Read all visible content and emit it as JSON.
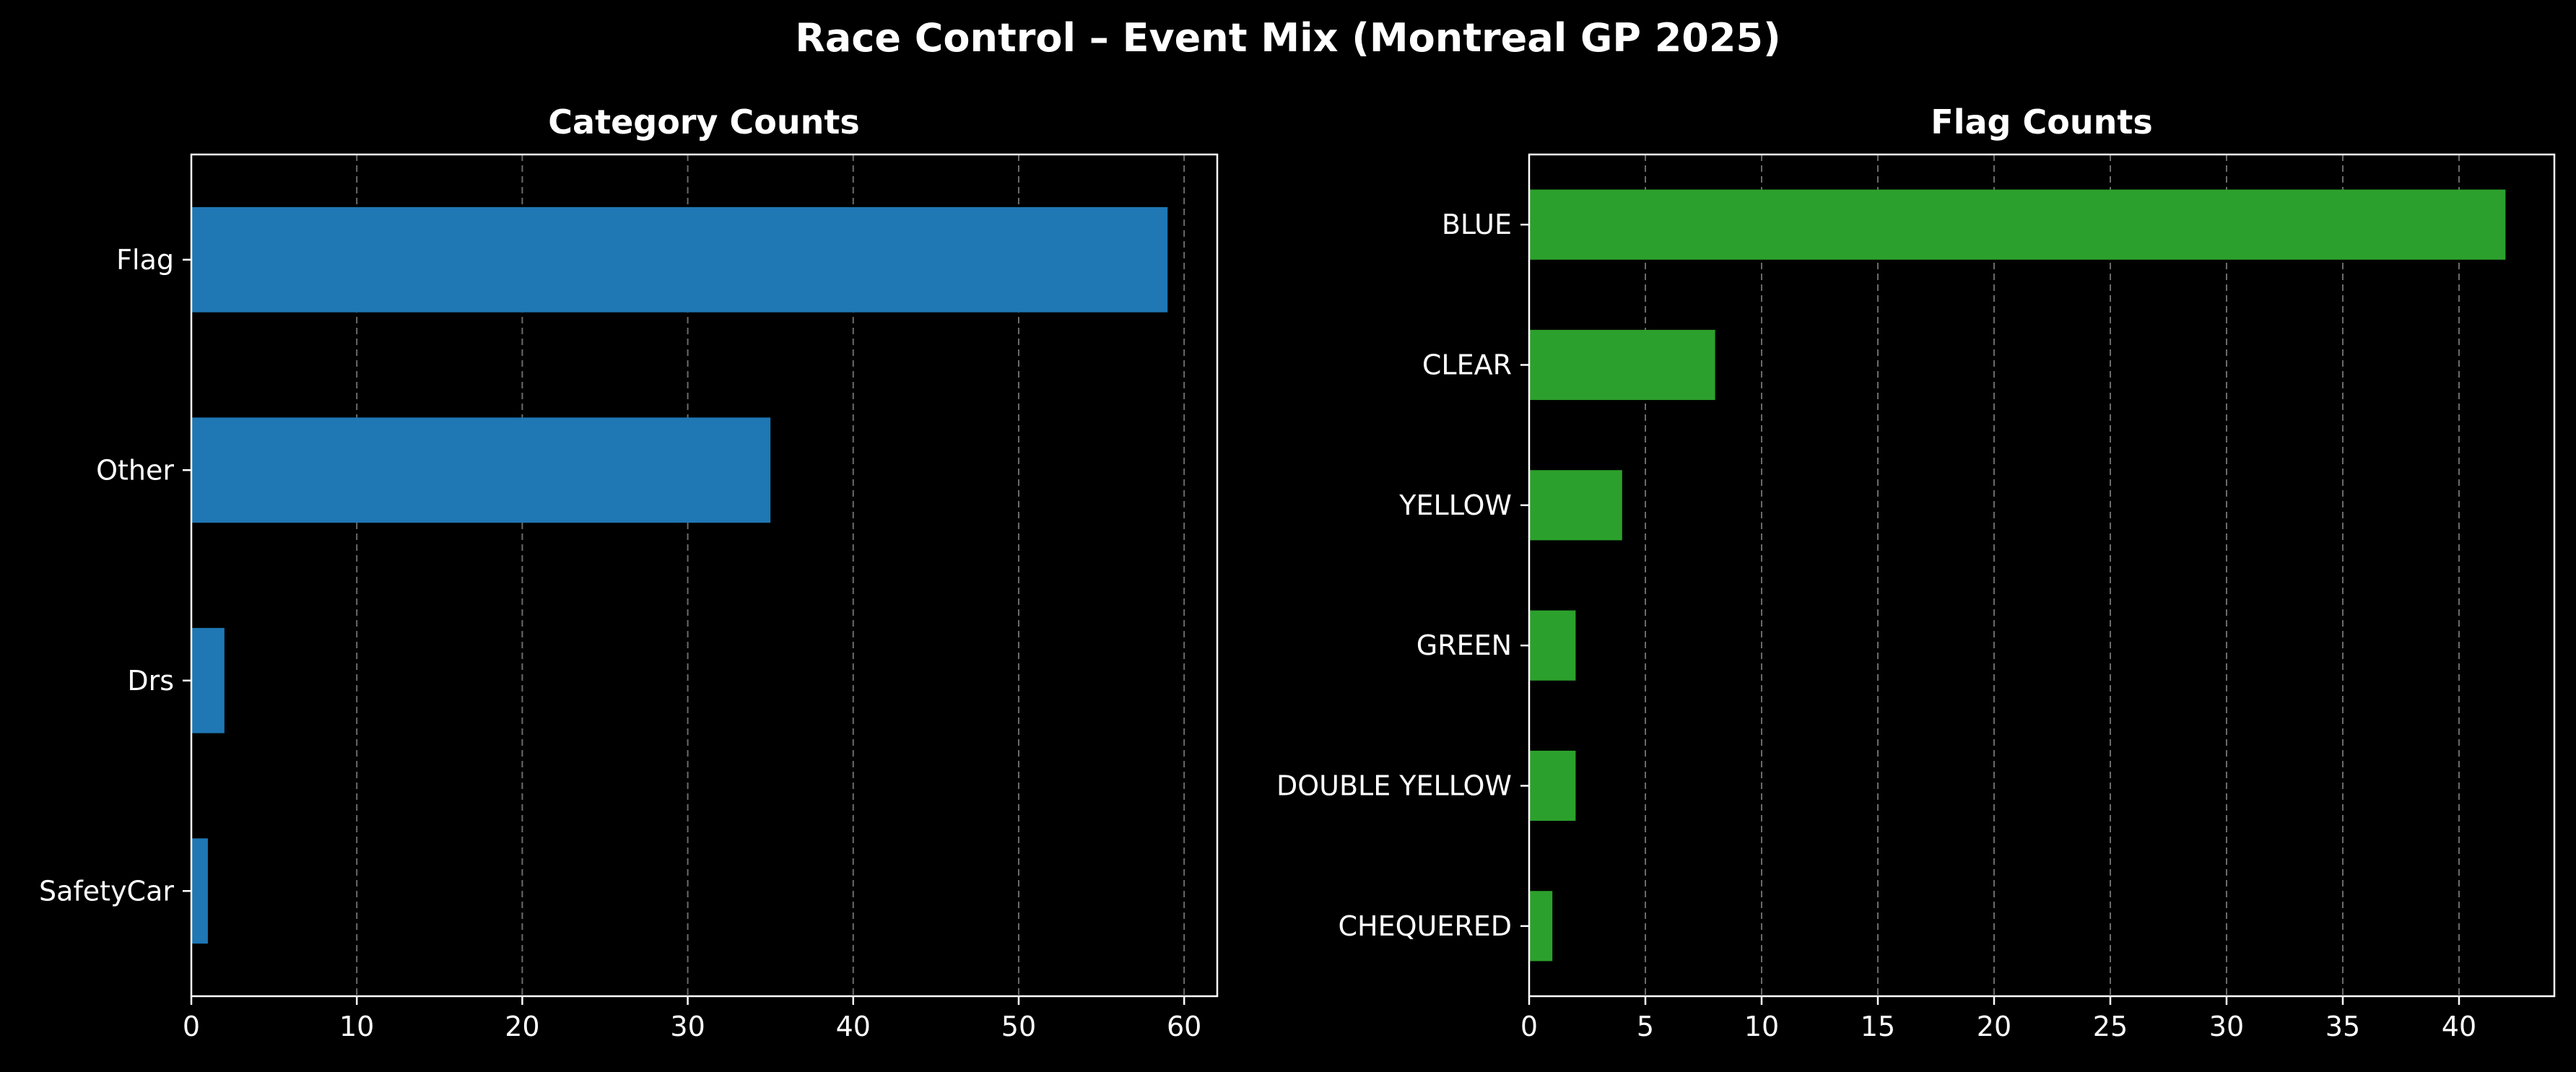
{
  "title": "Race Control – Event Mix (Montreal GP 2025)",
  "chart_data": [
    {
      "type": "bar",
      "orientation": "horizontal",
      "title": "Category Counts",
      "xlabel": "",
      "ylabel": "",
      "categories": [
        "Flag",
        "Other",
        "Drs",
        "SafetyCar"
      ],
      "values": [
        59,
        35,
        2,
        1
      ],
      "xlim": [
        0,
        62
      ],
      "xticks": [
        0,
        10,
        20,
        30,
        40,
        50,
        60
      ],
      "grid": "x-dashed",
      "color": "#1f77b4"
    },
    {
      "type": "bar",
      "orientation": "horizontal",
      "title": "Flag Counts",
      "xlabel": "",
      "ylabel": "",
      "categories": [
        "BLUE",
        "CLEAR",
        "YELLOW",
        "GREEN",
        "DOUBLE YELLOW",
        "CHEQUERED"
      ],
      "values": [
        42,
        8,
        4,
        2,
        2,
        1
      ],
      "xlim": [
        0,
        44.1
      ],
      "xticks": [
        0,
        5,
        10,
        15,
        20,
        25,
        30,
        35,
        40
      ],
      "grid": "x-dashed",
      "color": "#2ca02c"
    }
  ]
}
